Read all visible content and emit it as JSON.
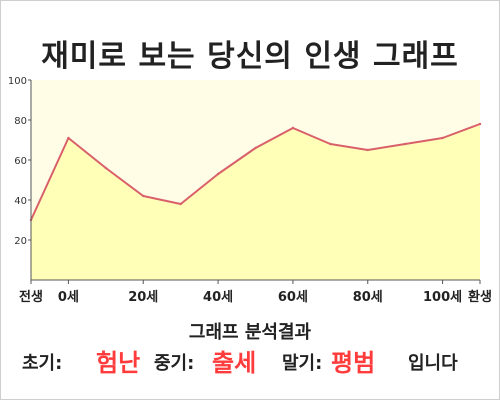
{
  "title": "재미로 보는 당신의 인생 그래프",
  "colors": {
    "plot_background": "#fffde6",
    "area_fill": "#ffffb8",
    "line": "#d9606a",
    "highlight": "#ff3b3b"
  },
  "chart_data": {
    "type": "area",
    "x_labels": [
      "전생",
      "0세",
      "20세",
      "40세",
      "60세",
      "80세",
      "100세",
      "환생"
    ],
    "y_ticks": [
      20,
      40,
      60,
      80,
      100
    ],
    "ylim": [
      0,
      100
    ],
    "grid": false,
    "series": [
      {
        "x": [
          "전생",
          "0세",
          "10세",
          "20세",
          "30세",
          "40세",
          "50세",
          "60세",
          "70세",
          "80세",
          "90세",
          "100세",
          "환생"
        ],
        "values": [
          30,
          71,
          56,
          42,
          38,
          53,
          66,
          76,
          68,
          65,
          68,
          71,
          78
        ]
      }
    ]
  },
  "analysis": {
    "title": "그래프 분석결과",
    "early_label": "초기:",
    "early_value": "험난",
    "middle_label": "중기:",
    "middle_value": "출세",
    "late_label": "말기:",
    "late_value": "평범",
    "ending": "입니다"
  }
}
